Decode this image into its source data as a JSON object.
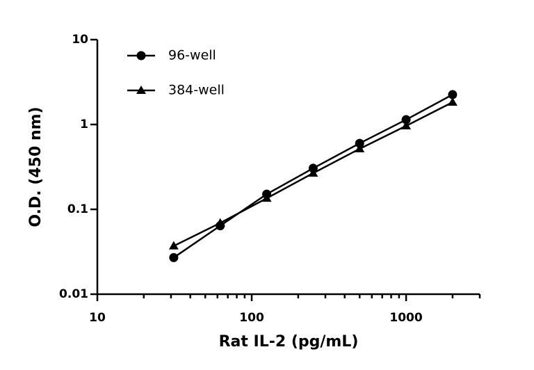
{
  "chart_data": {
    "type": "line",
    "x_label": "Rat IL-2 (pg/mL)",
    "y_label": "O.D. (450 nm)",
    "x": [
      31.25,
      62.5,
      125,
      250,
      500,
      1000,
      2000
    ],
    "series": [
      {
        "name": "96-well",
        "color": "#000000",
        "marker": "circle",
        "values": [
          0.027,
          0.064,
          0.151,
          0.305,
          0.6,
          1.14,
          2.25
        ]
      },
      {
        "name": "384-well",
        "color": "#000000",
        "marker": "triangle",
        "values": [
          0.037,
          0.069,
          0.135,
          0.267,
          0.517,
          0.963,
          1.83
        ]
      }
    ],
    "xlog": true,
    "ylog": true,
    "xlim": [
      10,
      3000
    ],
    "ylim": [
      0.01,
      10
    ],
    "xticks": [
      10,
      100,
      1000
    ],
    "yticks": [
      0.01,
      0.1,
      1,
      10
    ],
    "x_minor_ticks": [
      20,
      30,
      40,
      50,
      60,
      70,
      80,
      90,
      200,
      300,
      400,
      500,
      600,
      700,
      800,
      900,
      2000,
      3000
    ],
    "legend": "upper-left",
    "grid": false
  }
}
